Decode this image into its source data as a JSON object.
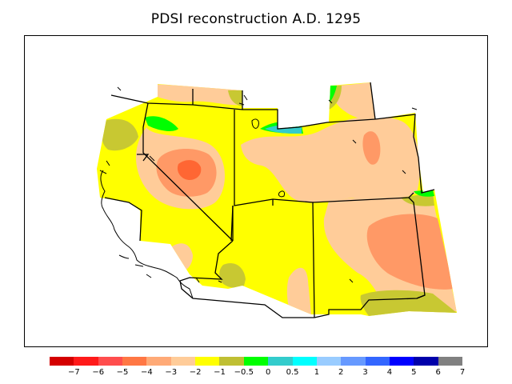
{
  "title": "PDSI reconstruction A.D. 1295",
  "legend": {
    "colors": [
      "#d40000",
      "#ff1a1a",
      "#ff4d4d",
      "#ff7744",
      "#ffaa77",
      "#ffcc99",
      "#ffff00",
      "#bfbf33",
      "#00ff00",
      "#33cccc",
      "#00ffff",
      "#99ccff",
      "#6699ff",
      "#3366ff",
      "#0000ff",
      "#0000aa",
      "#808080"
    ],
    "labels": [
      "−7",
      "−6",
      "−5",
      "−4",
      "−3",
      "−2",
      "−1",
      "−0.5",
      "0",
      "0.5",
      "1",
      "2",
      "3",
      "4",
      "5",
      "6",
      "7"
    ]
  },
  "colors": {
    "frame": "#000000",
    "dry_moderate": "#ffcc99",
    "dry_strong": "#ff9966",
    "dry_severe": "#ff6633",
    "near_normal": "#ffff00",
    "slight_dry": "#c8c832",
    "normal": "#00ff00",
    "slight_wet": "#33cccc"
  }
}
